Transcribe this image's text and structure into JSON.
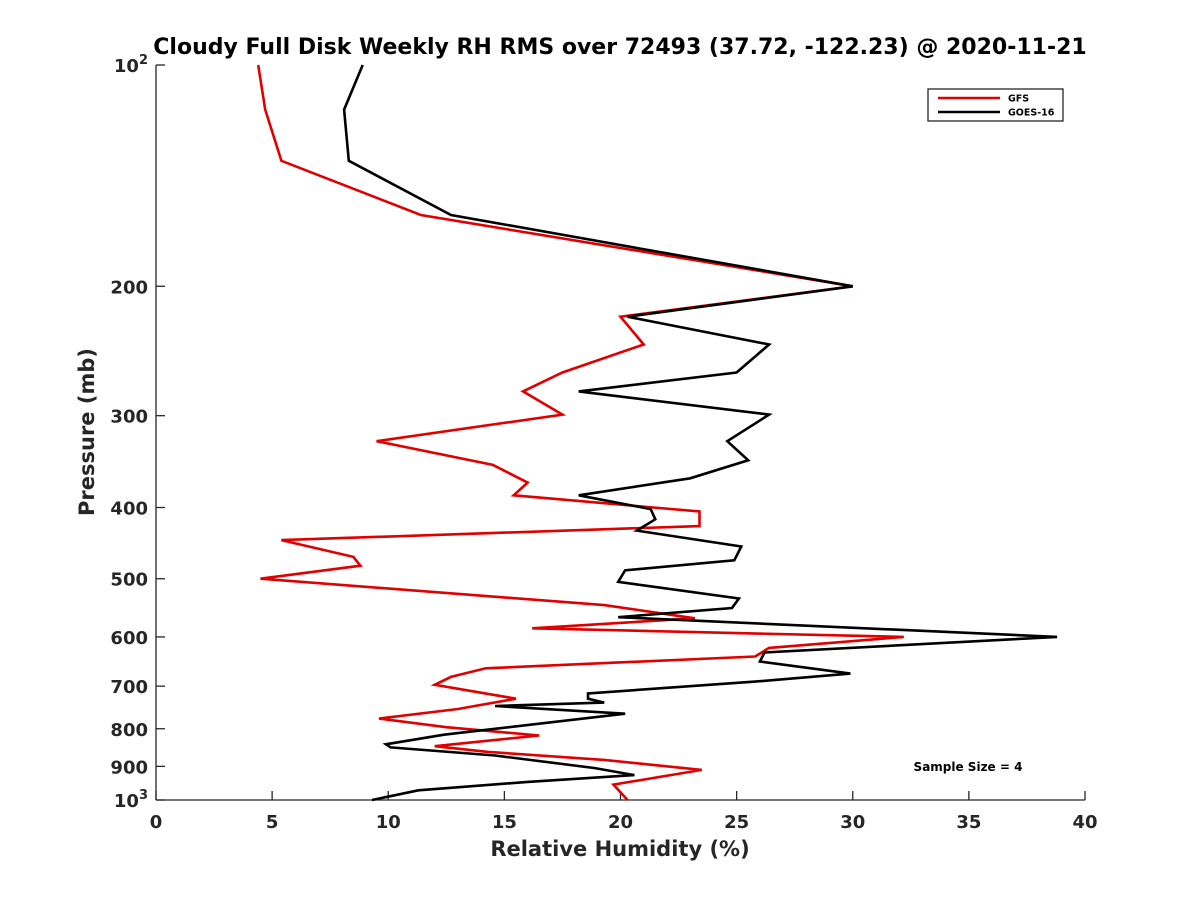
{
  "chart_data": {
    "type": "line",
    "title": "Cloudy Full Disk Weekly RH RMS over 72493 (37.72, -122.23) @ 2020-11-21",
    "xlabel": "Relative Humidity (%)",
    "ylabel": "Pressure (mb)",
    "xlim": [
      0,
      40
    ],
    "ylim": [
      100,
      1000
    ],
    "yscale": "log",
    "y_inverted": true,
    "grid": false,
    "legend_position": "top-right",
    "x_ticks": [
      "0",
      "5",
      "10",
      "15",
      "20",
      "25",
      "30",
      "35",
      "40"
    ],
    "y_ticks": [
      {
        "value": 100,
        "base": "10",
        "exp": "2"
      },
      {
        "value": 200,
        "label": "200"
      },
      {
        "value": 300,
        "label": "300"
      },
      {
        "value": 400,
        "label": "400"
      },
      {
        "value": 500,
        "label": "500"
      },
      {
        "value": 600,
        "label": "600"
      },
      {
        "value": 700,
        "label": "700"
      },
      {
        "value": 800,
        "label": "800"
      },
      {
        "value": 900,
        "label": "900"
      },
      {
        "value": 1000,
        "base": "10",
        "exp": "3"
      }
    ],
    "annotation": "Sample Size = 4",
    "series": [
      {
        "name": "GFS",
        "color": "#e00000",
        "points": [
          [
            4.4,
            100
          ],
          [
            4.7,
            115
          ],
          [
            5.4,
            135
          ],
          [
            11.4,
            160
          ],
          [
            30.0,
            200
          ],
          [
            20.0,
            220
          ],
          [
            21.0,
            240
          ],
          [
            17.5,
            262
          ],
          [
            15.8,
            278
          ],
          [
            17.5,
            299
          ],
          [
            9.5,
            325
          ],
          [
            14.5,
            350
          ],
          [
            16.0,
            370
          ],
          [
            15.4,
            385
          ],
          [
            23.4,
            405
          ],
          [
            23.4,
            424
          ],
          [
            5.4,
            443
          ],
          [
            8.5,
            467
          ],
          [
            8.8,
            480
          ],
          [
            4.5,
            500
          ],
          [
            19.3,
            543
          ],
          [
            23.2,
            566
          ],
          [
            16.2,
            584
          ],
          [
            32.2,
            600
          ],
          [
            26.4,
            621
          ],
          [
            25.8,
            638
          ],
          [
            14.2,
            662
          ],
          [
            12.7,
            680
          ],
          [
            12.0,
            697
          ],
          [
            15.5,
            728
          ],
          [
            13.0,
            752
          ],
          [
            9.6,
            775
          ],
          [
            12.5,
            796
          ],
          [
            16.5,
            817
          ],
          [
            12.0,
            845
          ],
          [
            14.3,
            860
          ],
          [
            19.3,
            882
          ],
          [
            23.5,
            910
          ],
          [
            19.7,
            953
          ],
          [
            20.3,
            1000
          ]
        ]
      },
      {
        "name": "GOES-16",
        "color": "#000000",
        "points": [
          [
            8.9,
            100
          ],
          [
            8.1,
            115
          ],
          [
            8.3,
            135
          ],
          [
            12.7,
            160
          ],
          [
            30.0,
            200
          ],
          [
            20.3,
            220
          ],
          [
            26.4,
            240
          ],
          [
            25.0,
            262
          ],
          [
            18.2,
            278
          ],
          [
            26.4,
            299
          ],
          [
            24.6,
            325
          ],
          [
            25.5,
            345
          ],
          [
            23.0,
            365
          ],
          [
            18.2,
            385
          ],
          [
            21.3,
            402
          ],
          [
            21.5,
            415
          ],
          [
            20.7,
            430
          ],
          [
            25.2,
            452
          ],
          [
            24.9,
            472
          ],
          [
            20.2,
            487
          ],
          [
            19.9,
            505
          ],
          [
            25.1,
            532
          ],
          [
            24.8,
            548
          ],
          [
            19.9,
            564
          ],
          [
            38.8,
            600
          ],
          [
            26.2,
            630
          ],
          [
            26.0,
            648
          ],
          [
            29.9,
            673
          ],
          [
            25.8,
            690
          ],
          [
            18.6,
            716
          ],
          [
            18.6,
            728
          ],
          [
            19.3,
            737
          ],
          [
            14.6,
            745
          ],
          [
            20.2,
            763
          ],
          [
            12.4,
            815
          ],
          [
            9.9,
            840
          ],
          [
            10.1,
            848
          ],
          [
            14.6,
            870
          ],
          [
            18.9,
            905
          ],
          [
            20.6,
            925
          ],
          [
            16.0,
            945
          ],
          [
            11.3,
            970
          ],
          [
            9.3,
            1000
          ]
        ]
      }
    ]
  }
}
